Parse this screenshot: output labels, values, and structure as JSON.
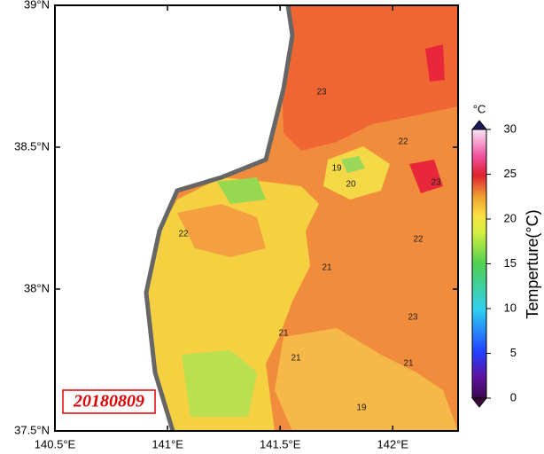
{
  "map": {
    "xlim": [
      140.5,
      142.29
    ],
    "ylim": [
      37.5,
      39
    ],
    "xticks": [
      {
        "value": 140.5,
        "label": "140.5°E"
      },
      {
        "value": 141,
        "label": "141°E"
      },
      {
        "value": 141.5,
        "label": "141.5°E"
      },
      {
        "value": 142,
        "label": "142°E"
      }
    ],
    "yticks": [
      {
        "value": 37.5,
        "label": "37.5°N"
      },
      {
        "value": 38,
        "label": "38°N"
      },
      {
        "value": 38.5,
        "label": "38.5°N"
      },
      {
        "value": 39,
        "label": "39°N"
      }
    ],
    "date": "20180809",
    "contour_labels": [
      23,
      22,
      19,
      20,
      23,
      22,
      22,
      21,
      21,
      23,
      21,
      21,
      19
    ]
  },
  "colorbar": {
    "label": "Temperture(°C)",
    "unit": "°C",
    "lim": [
      0,
      30
    ],
    "ticks": [
      0,
      5,
      10,
      15,
      20,
      25,
      30
    ]
  }
}
